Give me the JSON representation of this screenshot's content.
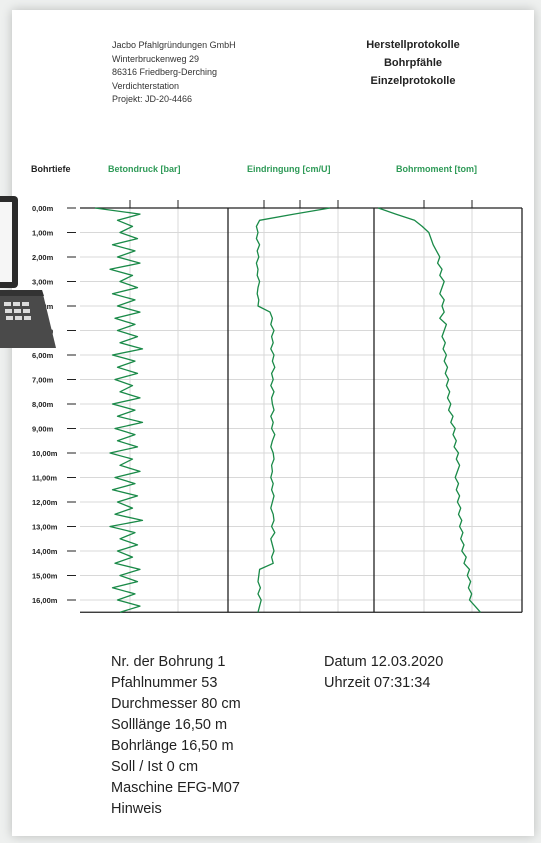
{
  "company": {
    "name": "Jacbo Pfahlgründungen GmbH",
    "street": "Winterbruckenweg 29",
    "city": "86316 Friedberg-Derching",
    "station": "Verdichterstation",
    "project": "Projekt: JD-20-4466"
  },
  "title": {
    "line1": "Herstellprotokolle",
    "line2": "Bohrpfähle",
    "line3": "Einzelprotokolle"
  },
  "columns": {
    "depth": "Bohrtiefe",
    "concrete": "Betondruck [bar]",
    "penetration": "Eindringung [cm/U]",
    "torque": "Bohrmoment [tom]"
  },
  "colors": {
    "curve": "#1a8a48",
    "label_green": "#2e9a57",
    "grid": "#d8d8d8",
    "axis": "#222222"
  },
  "info_left": [
    "Nr. der Bohrung 1",
    "Pfahlnummer 53",
    "Durchmesser 80 cm",
    "Solllänge 16,50 m",
    "Bohrlänge 16,50 m",
    "Soll / Ist 0 cm",
    "Maschine EFG-M07",
    "Hinweis"
  ],
  "info_right": [
    "Datum 12.03.2020",
    "Uhrzeit 07:31:34"
  ],
  "chart_data": {
    "type": "line",
    "y_unit": "m",
    "ylim": [
      0,
      16.5
    ],
    "depth_ticks": [
      "0,00m",
      "1,00m",
      "2,00m",
      "3,00m",
      "4,00m",
      "5,00m",
      "6,00m",
      "7,00m",
      "8,00m",
      "9,00m",
      "10,00m",
      "11,00m",
      "12,00m",
      "13,00m",
      "14,00m",
      "15,00m",
      "16,00m"
    ],
    "grid": true,
    "series": [
      {
        "name": "Betondruck [bar]",
        "x": [
          0.0,
          0.9,
          0.45,
          0.75,
          0.5,
          0.85,
          0.35,
          0.8,
          0.45,
          0.9,
          0.3,
          0.75,
          0.5,
          0.85,
          0.35,
          0.8,
          0.45,
          0.9,
          0.4,
          0.8,
          0.45,
          0.85,
          0.5,
          0.95,
          0.35,
          0.8,
          0.45,
          0.85,
          0.4,
          0.75,
          0.5,
          0.9,
          0.35,
          0.8,
          0.45,
          0.95,
          0.4,
          0.8,
          0.45,
          0.85,
          0.3,
          0.75,
          0.5,
          0.9,
          0.4,
          0.8,
          0.35,
          0.85,
          0.45,
          0.75,
          0.4,
          0.95,
          0.3,
          0.8,
          0.5,
          0.85,
          0.45,
          0.75,
          0.4,
          0.9,
          0.5,
          0.85,
          0.35,
          0.8,
          0.45,
          0.9,
          0.5
        ]
      },
      {
        "name": "Eindringung [cm/U]",
        "x": [
          1.0,
          0.55,
          0.12,
          0.08,
          0.1,
          0.08,
          0.12,
          0.09,
          0.11,
          0.08,
          0.1,
          0.09,
          0.12,
          0.1,
          0.09,
          0.11,
          0.1,
          0.25,
          0.28,
          0.26,
          0.3,
          0.27,
          0.29,
          0.26,
          0.3,
          0.28,
          0.31,
          0.27,
          0.29,
          0.26,
          0.3,
          0.27,
          0.28,
          0.3,
          0.26,
          0.29,
          0.27,
          0.31,
          0.28,
          0.26,
          0.29,
          0.3,
          0.27,
          0.28,
          0.26,
          0.29,
          0.27,
          0.3,
          0.28,
          0.26,
          0.29,
          0.3,
          0.27,
          0.31,
          0.26,
          0.28,
          0.3,
          0.27,
          0.29,
          0.12,
          0.11,
          0.1,
          0.13,
          0.1,
          0.14,
          0.12,
          0.1
        ]
      },
      {
        "name": "Bohrmoment [tom]",
        "x": [
          0.02,
          0.18,
          0.35,
          0.42,
          0.48,
          0.5,
          0.52,
          0.55,
          0.58,
          0.56,
          0.6,
          0.58,
          0.62,
          0.6,
          0.58,
          0.62,
          0.6,
          0.62,
          0.58,
          0.64,
          0.62,
          0.6,
          0.63,
          0.61,
          0.64,
          0.62,
          0.65,
          0.63,
          0.66,
          0.64,
          0.67,
          0.65,
          0.68,
          0.66,
          0.7,
          0.68,
          0.72,
          0.7,
          0.73,
          0.71,
          0.75,
          0.73,
          0.76,
          0.74,
          0.72,
          0.75,
          0.73,
          0.76,
          0.74,
          0.77,
          0.75,
          0.78,
          0.76,
          0.79,
          0.77,
          0.8,
          0.78,
          0.82,
          0.8,
          0.85,
          0.83,
          0.86,
          0.84,
          0.87,
          0.85,
          0.9,
          0.95
        ]
      }
    ]
  }
}
